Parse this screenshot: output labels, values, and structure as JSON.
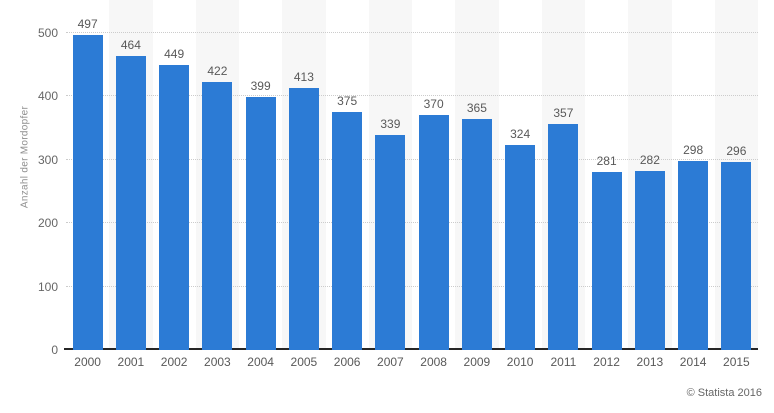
{
  "chart_data": {
    "type": "bar",
    "title": "",
    "xlabel": "",
    "ylabel": "Anzahl der Mordopfer",
    "categories": [
      "2000",
      "2001",
      "2002",
      "2003",
      "2004",
      "2005",
      "2006",
      "2007",
      "2008",
      "2009",
      "2010",
      "2011",
      "2012",
      "2013",
      "2014",
      "2015"
    ],
    "values": [
      497,
      464,
      449,
      422,
      399,
      413,
      375,
      339,
      370,
      365,
      324,
      357,
      281,
      282,
      298,
      296
    ],
    "yticks": [
      0,
      100,
      200,
      300,
      400,
      500
    ],
    "ylim": [
      0,
      552
    ],
    "grid": "horizontal-dotted",
    "legend": "none",
    "value_labels": "above-bars",
    "colors": {
      "bar": "#2c7bd5",
      "band": "#f7f7f7",
      "gridline": "#cccccc",
      "axis": "#262626",
      "tick_label": "#666666",
      "value_label": "#595959",
      "ylabel_text": "#8f8f8f"
    }
  },
  "footer": {
    "credit": "© Statista 2016"
  }
}
